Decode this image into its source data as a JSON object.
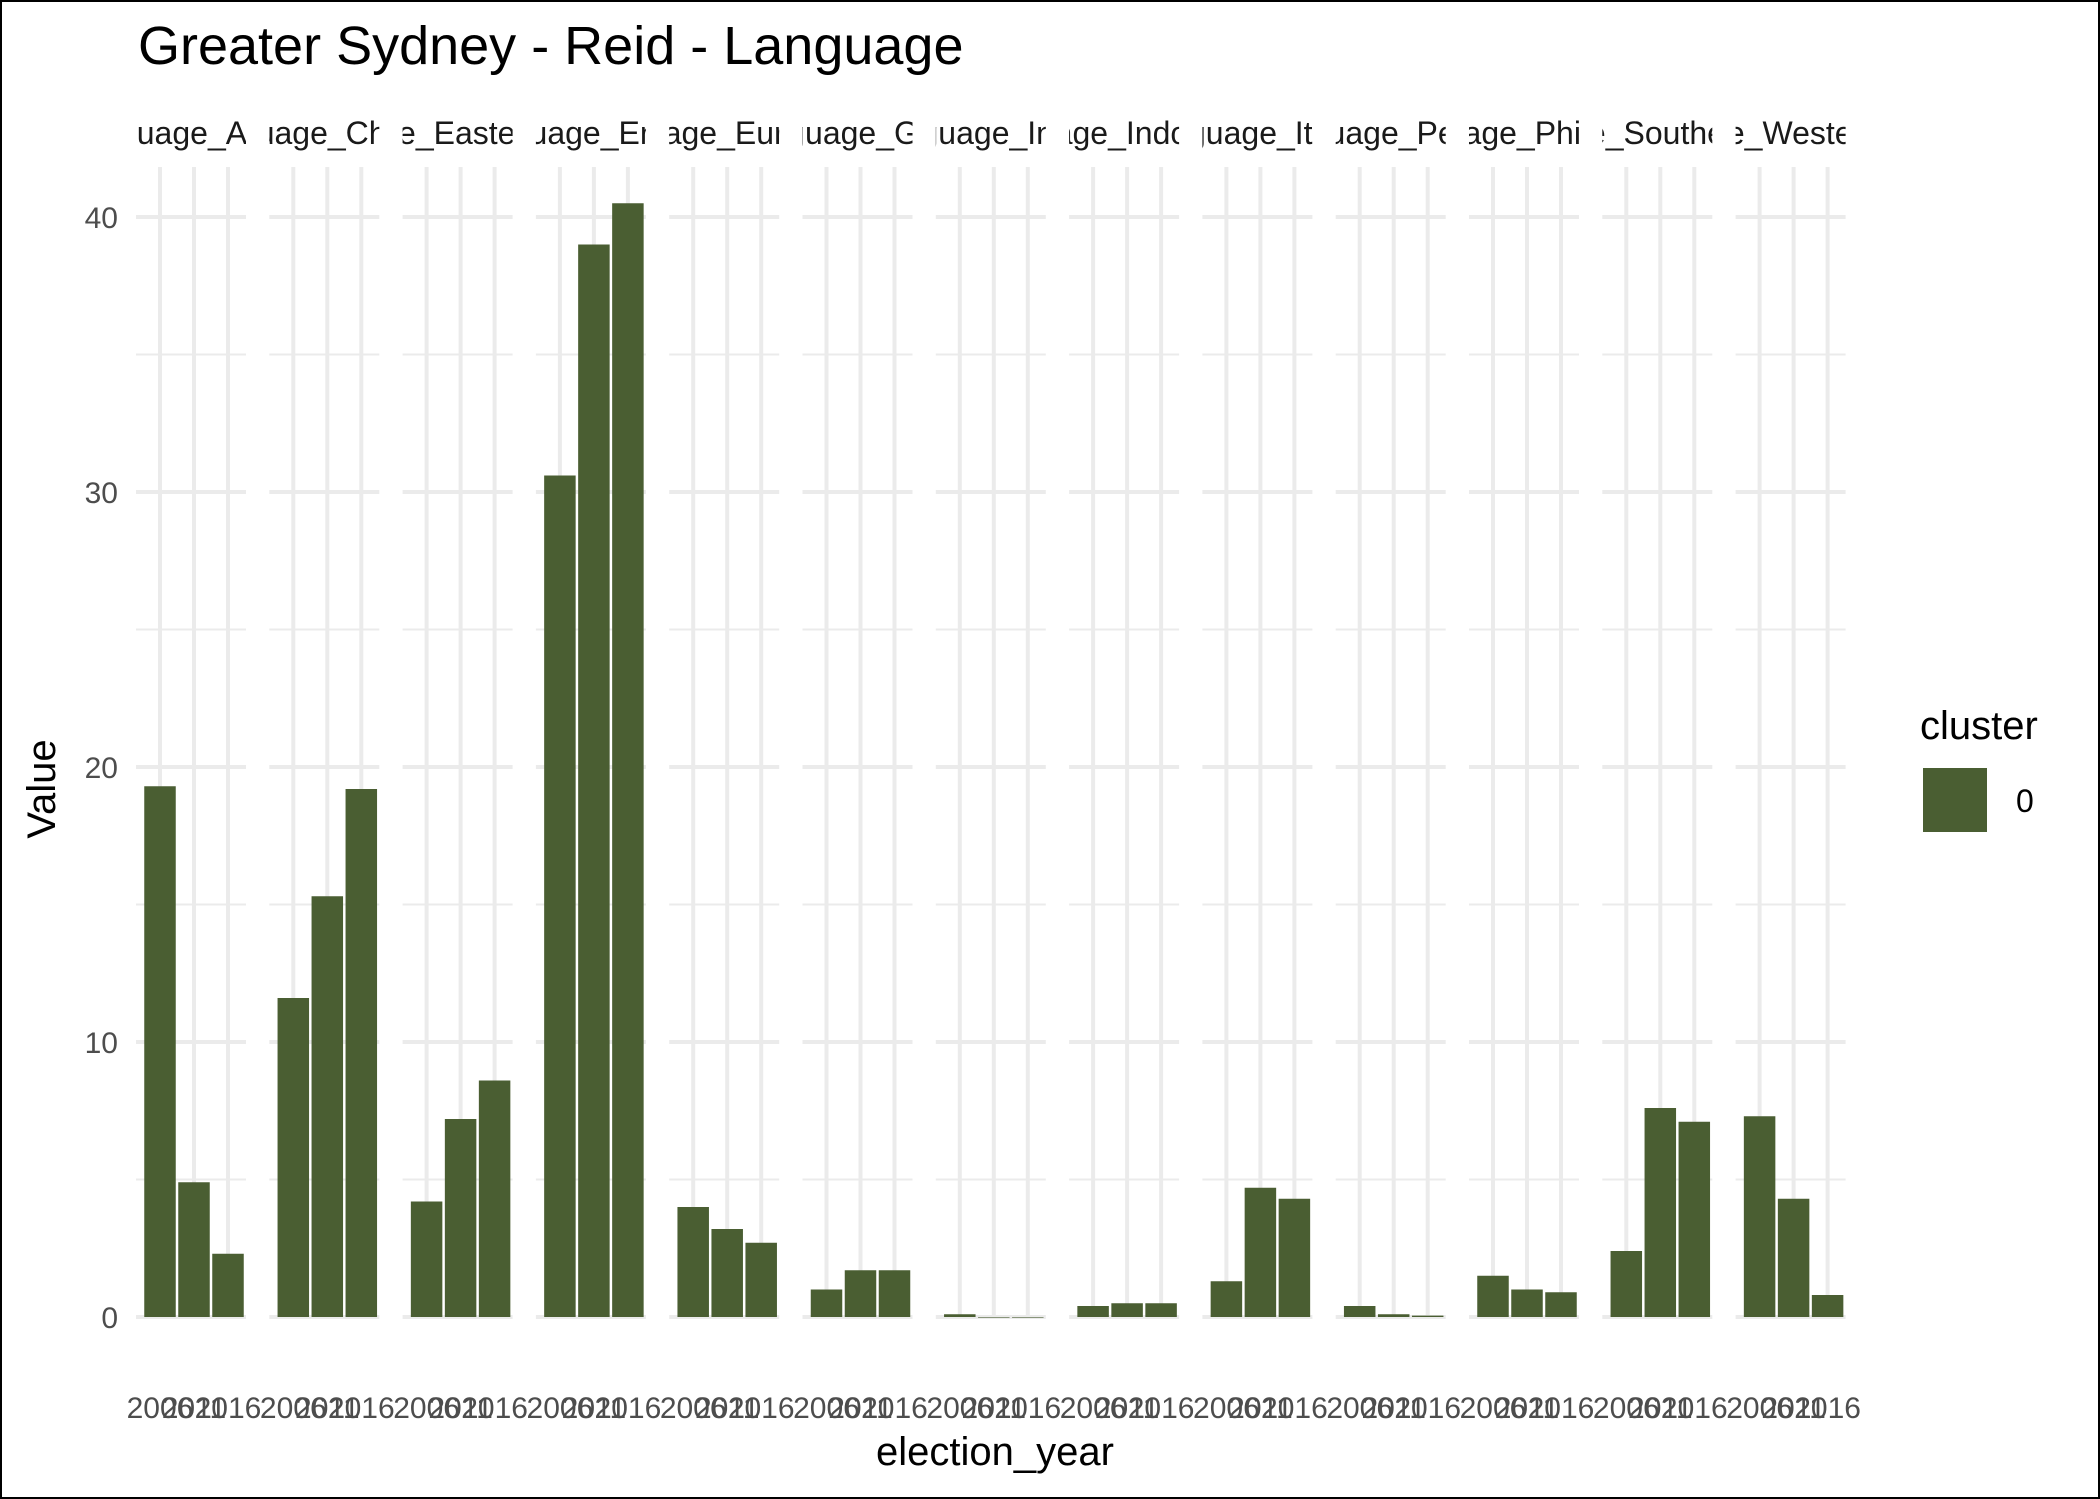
{
  "chart_data": {
    "type": "bar",
    "title": "Greater Sydney - Reid - Language",
    "xlabel": "election_year",
    "ylabel": "Value",
    "ylim": [
      0,
      42
    ],
    "yticks": [
      "0",
      "10",
      "20",
      "30",
      "40"
    ],
    "yticks_values": [
      0,
      10,
      20,
      30,
      40
    ],
    "categories": [
      "2006",
      "2011",
      "2016"
    ],
    "grid": true,
    "colors": {
      "bar": "#4a5e32",
      "grid": "#ebebeb"
    },
    "legend": {
      "title": "cluster",
      "position": "right",
      "entries": [
        {
          "label": "0",
          "color": "#4a5e32"
        }
      ]
    },
    "facets": [
      {
        "label": "Language_Arabic",
        "values": [
          19.3,
          4.9,
          2.3
        ]
      },
      {
        "label": "Language_Chinese",
        "values": [
          11.6,
          15.3,
          19.2
        ]
      },
      {
        "label": "Language_Eastern_Asian",
        "values": [
          4.2,
          7.2,
          8.6
        ]
      },
      {
        "label": "Language_English",
        "values": [
          30.6,
          39.0,
          40.5
        ]
      },
      {
        "label": "Language_European",
        "values": [
          4.0,
          3.2,
          2.7
        ]
      },
      {
        "label": "Language_Greek",
        "values": [
          1.0,
          1.7,
          1.7
        ]
      },
      {
        "label": "Language_Indian",
        "values": [
          0.1,
          0.0,
          0.0
        ]
      },
      {
        "label": "Language_Indonesian",
        "values": [
          0.4,
          0.5,
          0.5
        ]
      },
      {
        "label": "Language_Italian",
        "values": [
          1.3,
          4.7,
          4.3
        ]
      },
      {
        "label": "Language_Persian",
        "values": [
          0.4,
          0.1,
          0.05
        ]
      },
      {
        "label": "Language_Philippine",
        "values": [
          1.5,
          1.0,
          0.9
        ]
      },
      {
        "label": "Language_Southern_Asian",
        "values": [
          2.4,
          7.6,
          7.1
        ]
      },
      {
        "label": "Language_Western_Asian",
        "values": [
          7.3,
          4.3,
          0.8
        ]
      }
    ]
  }
}
